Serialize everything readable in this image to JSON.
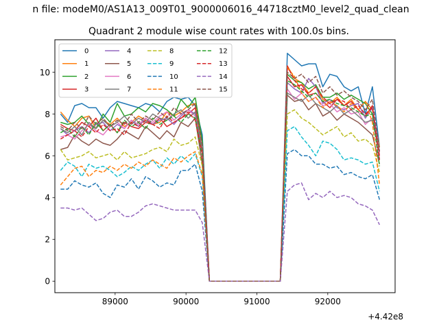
{
  "figure": {
    "suptitle": "n file: modeM0/AS1A13_009T01_9000006016_44718cztM0_level2_quad_clean",
    "offset_label": "+4.42e8"
  },
  "chart_data": {
    "type": "line",
    "title": "Quadrant 2 module wise count rates with 100.0s bins.",
    "xlabel": "",
    "ylabel": "",
    "x_offset": 442000000,
    "xlim": [
      88150,
      92950
    ],
    "ylim": [
      -0.55,
      11.55
    ],
    "xticks": [
      89000,
      90000,
      91000,
      92000
    ],
    "xtick_labels": [
      "89000",
      "90000",
      "91000",
      "92000"
    ],
    "yticks": [
      0,
      2,
      4,
      6,
      8,
      10
    ],
    "ytick_labels": [
      "0",
      "2",
      "4",
      "6",
      "8",
      "10"
    ],
    "grid": false,
    "legend_location": "upper-left",
    "legend_columns": 4,
    "x": [
      88230,
      88330,
      88430,
      88530,
      88630,
      88730,
      88830,
      88930,
      89030,
      89130,
      89230,
      89330,
      89430,
      89530,
      89630,
      89730,
      89830,
      89930,
      90030,
      90130,
      90230,
      90330,
      90430,
      90530,
      90630,
      90730,
      90830,
      90930,
      91030,
      91130,
      91230,
      91330,
      91430,
      91530,
      91630,
      91730,
      91830,
      91930,
      92030,
      92130,
      92230,
      92330,
      92430,
      92530,
      92630,
      92730
    ],
    "series": [
      {
        "name": "0",
        "color": "#1f77b4",
        "dash": "solid",
        "values": [
          8.0,
          7.6,
          8.4,
          8.5,
          8.3,
          8.3,
          7.8,
          8.3,
          8.6,
          8.5,
          8.4,
          8.3,
          8.5,
          8.4,
          8.1,
          8.6,
          8.8,
          8.7,
          8.8,
          8.4,
          7.0,
          0,
          0,
          0,
          0,
          0,
          0,
          0,
          0,
          0,
          0,
          0,
          10.9,
          10.6,
          10.3,
          10.4,
          10.4,
          9.3,
          9.9,
          9.8,
          9.3,
          9.1,
          9.3,
          8.0,
          9.3,
          6.4
        ]
      },
      {
        "name": "1",
        "color": "#ff7f0e",
        "dash": "solid",
        "values": [
          8.1,
          7.7,
          7.4,
          7.8,
          7.9,
          7.3,
          7.7,
          7.5,
          7.8,
          7.4,
          7.6,
          7.9,
          7.7,
          7.5,
          7.6,
          8.1,
          7.9,
          8.1,
          8.4,
          8.5,
          6.4,
          0,
          0,
          0,
          0,
          0,
          0,
          0,
          0,
          0,
          0,
          0,
          10.3,
          9.7,
          9.5,
          9.0,
          9.3,
          8.7,
          8.5,
          8.8,
          8.4,
          8.7,
          8.2,
          8.6,
          8.2,
          6.4
        ]
      },
      {
        "name": "2",
        "color": "#2ca02c",
        "dash": "solid",
        "values": [
          7.6,
          7.5,
          7.6,
          7.9,
          7.5,
          7.3,
          8.0,
          7.6,
          8.5,
          7.9,
          8.0,
          8.3,
          8.1,
          8.5,
          8.4,
          8.2,
          7.9,
          8.7,
          8.3,
          8.8,
          6.7,
          0,
          0,
          0,
          0,
          0,
          0,
          0,
          0,
          0,
          0,
          0,
          9.9,
          9.6,
          9.5,
          9.2,
          9.4,
          8.8,
          8.8,
          9.0,
          8.7,
          8.9,
          8.7,
          8.5,
          8.0,
          5.8
        ]
      },
      {
        "name": "3",
        "color": "#d62728",
        "dash": "solid",
        "values": [
          7.5,
          7.3,
          7.2,
          7.6,
          7.4,
          7.8,
          7.2,
          7.5,
          7.1,
          7.6,
          7.4,
          7.3,
          7.6,
          7.5,
          7.8,
          7.4,
          7.6,
          7.8,
          8.0,
          8.3,
          6.2,
          0,
          0,
          0,
          0,
          0,
          0,
          0,
          0,
          0,
          0,
          0,
          9.8,
          9.3,
          9.4,
          8.9,
          9.0,
          8.6,
          8.3,
          8.7,
          8.4,
          8.6,
          8.2,
          7.9,
          8.4,
          6.0
        ]
      },
      {
        "name": "4",
        "color": "#9467bd",
        "dash": "solid",
        "values": [
          7.3,
          7.0,
          7.2,
          7.4,
          7.1,
          7.5,
          7.6,
          7.2,
          7.5,
          7.3,
          7.7,
          7.4,
          7.8,
          7.5,
          7.7,
          7.8,
          7.5,
          7.9,
          8.2,
          8.0,
          6.1,
          0,
          0,
          0,
          0,
          0,
          0,
          0,
          0,
          0,
          0,
          0,
          9.5,
          9.2,
          9.0,
          9.7,
          9.3,
          8.5,
          8.7,
          8.3,
          8.2,
          8.4,
          8.5,
          7.8,
          8.3,
          6.2
        ]
      },
      {
        "name": "5",
        "color": "#8c564b",
        "dash": "solid",
        "values": [
          6.3,
          6.4,
          7.0,
          6.7,
          6.5,
          6.8,
          6.6,
          6.5,
          6.8,
          7.2,
          7.0,
          6.8,
          7.4,
          7.1,
          6.8,
          7.2,
          6.9,
          7.6,
          7.4,
          7.8,
          5.6,
          0,
          0,
          0,
          0,
          0,
          0,
          0,
          0,
          0,
          0,
          0,
          8.9,
          8.6,
          8.7,
          8.2,
          8.5,
          7.9,
          8.1,
          7.7,
          8.0,
          7.8,
          7.6,
          7.3,
          7.0,
          5.6
        ]
      },
      {
        "name": "6",
        "color": "#e377c2",
        "dash": "solid",
        "values": [
          6.9,
          7.0,
          6.8,
          7.2,
          7.5,
          7.2,
          7.0,
          7.4,
          7.6,
          7.3,
          7.7,
          7.5,
          7.8,
          7.6,
          7.9,
          8.1,
          7.7,
          8.0,
          8.2,
          7.9,
          6.4,
          0,
          0,
          0,
          0,
          0,
          0,
          0,
          0,
          0,
          0,
          0,
          9.2,
          8.7,
          9.0,
          8.6,
          8.8,
          8.4,
          8.5,
          8.1,
          8.3,
          8.0,
          8.1,
          7.5,
          7.8,
          5.9
        ]
      },
      {
        "name": "7",
        "color": "#7f7f7f",
        "dash": "solid",
        "values": [
          7.3,
          7.1,
          7.4,
          7.0,
          7.6,
          7.3,
          7.7,
          7.4,
          7.6,
          7.9,
          7.5,
          7.8,
          7.6,
          8.0,
          7.8,
          7.7,
          8.0,
          8.2,
          7.8,
          8.1,
          6.3,
          0,
          0,
          0,
          0,
          0,
          0,
          0,
          0,
          0,
          0,
          0,
          9.0,
          8.8,
          8.6,
          8.9,
          8.5,
          8.3,
          8.1,
          8.4,
          8.0,
          8.2,
          7.9,
          7.6,
          7.7,
          6.2
        ]
      },
      {
        "name": "8",
        "color": "#bcbd22",
        "dash": "dashed",
        "values": [
          6.3,
          5.8,
          5.9,
          6.0,
          6.2,
          5.9,
          6.0,
          6.1,
          5.8,
          6.2,
          5.9,
          6.0,
          6.1,
          6.3,
          6.4,
          6.2,
          6.8,
          6.5,
          6.6,
          6.9,
          5.5,
          0,
          0,
          0,
          0,
          0,
          0,
          0,
          0,
          0,
          0,
          0,
          8.0,
          8.2,
          7.8,
          7.6,
          7.3,
          7.0,
          7.2,
          7.4,
          6.9,
          7.1,
          6.7,
          6.8,
          6.5,
          5.2
        ]
      },
      {
        "name": "9",
        "color": "#17becf",
        "dash": "dashed",
        "values": [
          5.3,
          5.7,
          5.5,
          5.0,
          5.6,
          5.4,
          5.5,
          5.3,
          5.0,
          5.2,
          5.5,
          5.3,
          5.6,
          5.8,
          5.4,
          5.9,
          5.6,
          6.0,
          5.7,
          6.1,
          5.0,
          0,
          0,
          0,
          0,
          0,
          0,
          0,
          0,
          0,
          0,
          0,
          7.2,
          7.4,
          6.9,
          6.5,
          6.0,
          6.7,
          6.6,
          6.3,
          5.8,
          5.9,
          5.8,
          5.6,
          5.7,
          4.3
        ]
      },
      {
        "name": "10",
        "color": "#1f77b4",
        "dash": "dashed",
        "values": [
          4.4,
          4.4,
          4.8,
          4.6,
          4.5,
          4.7,
          4.2,
          4.0,
          4.6,
          4.5,
          4.9,
          4.4,
          5.0,
          4.8,
          4.5,
          4.7,
          4.6,
          5.3,
          5.3,
          5.6,
          4.3,
          0,
          0,
          0,
          0,
          0,
          0,
          0,
          0,
          0,
          0,
          0,
          6.1,
          6.3,
          6.0,
          6.0,
          5.6,
          5.6,
          5.4,
          5.5,
          5.1,
          5.2,
          5.0,
          4.9,
          5.1,
          3.9
        ]
      },
      {
        "name": "11",
        "color": "#ff7f0e",
        "dash": "dashed",
        "values": [
          4.6,
          5.0,
          5.4,
          5.5,
          5.0,
          5.3,
          5.2,
          5.5,
          5.3,
          5.6,
          5.4,
          5.7,
          5.5,
          5.8,
          5.6,
          5.4,
          5.9,
          5.7,
          6.0,
          6.2,
          5.1,
          0,
          0,
          0,
          0,
          0,
          0,
          0,
          0,
          0,
          0,
          0,
          10.2,
          9.8,
          9.0,
          8.6,
          8.8,
          8.3,
          8.6,
          8.4,
          8.1,
          8.5,
          8.2,
          8.6,
          7.6,
          4.6
        ]
      },
      {
        "name": "12",
        "color": "#2ca02c",
        "dash": "dashed",
        "values": [
          7.1,
          7.3,
          6.9,
          7.4,
          7.0,
          7.6,
          7.2,
          7.5,
          7.1,
          7.7,
          7.4,
          7.6,
          7.3,
          7.8,
          7.5,
          7.7,
          7.9,
          7.6,
          8.0,
          7.8,
          6.0,
          0,
          0,
          0,
          0,
          0,
          0,
          0,
          0,
          0,
          0,
          0,
          9.6,
          9.4,
          9.1,
          8.8,
          9.0,
          8.6,
          8.7,
          8.5,
          8.4,
          8.3,
          8.1,
          7.9,
          8.0,
          5.5
        ]
      },
      {
        "name": "13",
        "color": "#d62728",
        "dash": "dashed",
        "values": [
          6.8,
          7.0,
          7.2,
          6.9,
          7.4,
          7.1,
          7.5,
          7.2,
          7.3,
          7.0,
          7.6,
          7.4,
          7.7,
          7.5,
          7.3,
          7.9,
          7.6,
          7.8,
          8.1,
          7.7,
          6.1,
          0,
          0,
          0,
          0,
          0,
          0,
          0,
          0,
          0,
          0,
          0,
          10.3,
          9.6,
          9.2,
          9.0,
          9.3,
          8.8,
          8.5,
          8.7,
          8.6,
          8.2,
          8.4,
          8.0,
          8.3,
          5.8
        ]
      },
      {
        "name": "14",
        "color": "#9467bd",
        "dash": "dashed",
        "values": [
          3.5,
          3.5,
          3.4,
          3.5,
          3.2,
          2.9,
          3.0,
          3.3,
          3.4,
          3.1,
          3.1,
          3.3,
          3.6,
          3.7,
          3.6,
          3.5,
          3.4,
          3.4,
          3.4,
          3.4,
          2.8,
          0,
          0,
          0,
          0,
          0,
          0,
          0,
          0,
          0,
          0,
          0,
          4.3,
          4.6,
          4.7,
          3.9,
          4.2,
          4.0,
          4.3,
          4.0,
          4.1,
          4.0,
          3.7,
          3.6,
          3.4,
          2.7
        ]
      },
      {
        "name": "15",
        "color": "#8c564b",
        "dash": "dashed",
        "values": [
          7.4,
          7.2,
          7.6,
          7.3,
          7.9,
          7.5,
          7.8,
          7.4,
          7.7,
          7.5,
          8.0,
          7.6,
          7.9,
          7.7,
          8.1,
          7.8,
          8.3,
          8.0,
          8.2,
          8.5,
          6.5,
          0,
          0,
          0,
          0,
          0,
          0,
          0,
          0,
          0,
          0,
          0,
          10.0,
          9.7,
          9.9,
          9.5,
          9.8,
          9.0,
          9.3,
          8.9,
          9.1,
          8.8,
          8.6,
          8.2,
          8.7,
          6.2
        ]
      }
    ]
  }
}
